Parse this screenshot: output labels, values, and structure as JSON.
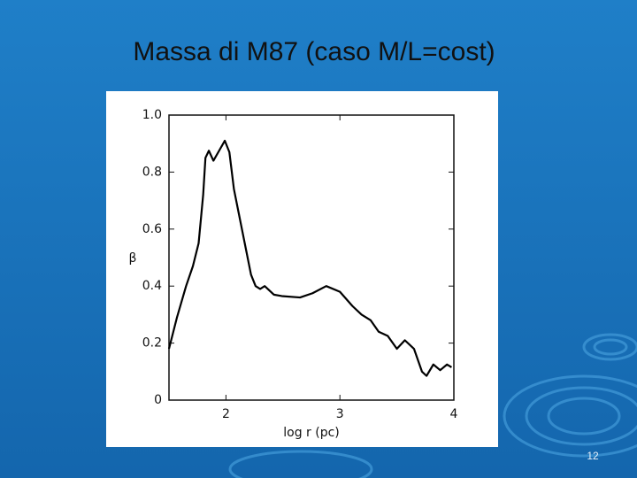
{
  "slide": {
    "title": "Massa di M87 (caso M/L=cost)",
    "page_number": "12"
  },
  "chart_data": {
    "type": "line",
    "xlabel": "log r (pc)",
    "ylabel": "β",
    "color": "#000000",
    "x": [
      1.5,
      1.57,
      1.65,
      1.71,
      1.76,
      1.8,
      1.82,
      1.85,
      1.89,
      1.94,
      1.99,
      2.03,
      2.07,
      2.11,
      2.17,
      2.22,
      2.26,
      2.3,
      2.34,
      2.42,
      2.49,
      2.65,
      2.76,
      2.88,
      3.0,
      3.11,
      3.19,
      3.27,
      3.34,
      3.42,
      3.5,
      3.57,
      3.65,
      3.72,
      3.76,
      3.82,
      3.88,
      3.94,
      3.98
    ],
    "values": [
      0.18,
      0.29,
      0.4,
      0.47,
      0.55,
      0.72,
      0.85,
      0.875,
      0.84,
      0.875,
      0.91,
      0.87,
      0.74,
      0.66,
      0.54,
      0.44,
      0.4,
      0.39,
      0.4,
      0.37,
      0.365,
      0.36,
      0.375,
      0.4,
      0.38,
      0.33,
      0.3,
      0.28,
      0.24,
      0.225,
      0.18,
      0.21,
      0.18,
      0.1,
      0.085,
      0.125,
      0.105,
      0.125,
      0.115
    ],
    "xlim": [
      1.5,
      4
    ],
    "xticks": [
      2,
      3,
      4
    ],
    "ylim": [
      0,
      1.0
    ],
    "yticks": [
      0,
      0.2,
      0.4,
      0.6,
      0.8,
      {
        "value": 1.0,
        "label": "1.0"
      }
    ]
  }
}
